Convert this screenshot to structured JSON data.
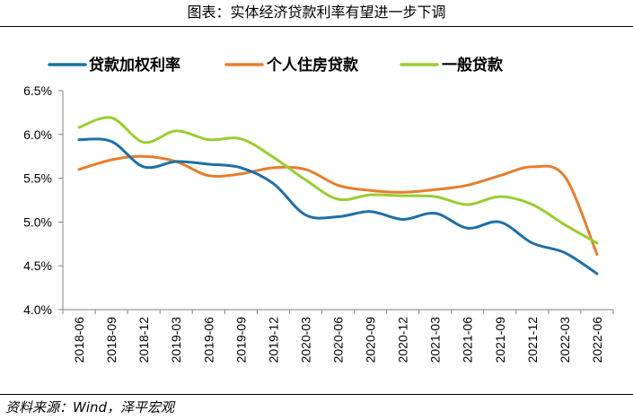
{
  "header": {
    "title": "图表：实体经济贷款利率有望进一步下调"
  },
  "footer": {
    "source": "资料来源：Wind，泽平宏观"
  },
  "chart_data": {
    "type": "line",
    "title": "图表：实体经济贷款利率有望进一步下调",
    "xlabel": "",
    "ylabel": "",
    "ylim": [
      4.0,
      6.5
    ],
    "y_ticks": [
      "4.0%",
      "4.5%",
      "5.0%",
      "5.5%",
      "6.0%",
      "6.5%"
    ],
    "y_tick_values": [
      4.0,
      4.5,
      5.0,
      5.5,
      6.0,
      6.5
    ],
    "grid": false,
    "legend_position": "top",
    "categories": [
      "2018-06",
      "2018-09",
      "2018-12",
      "2019-03",
      "2019-06",
      "2019-09",
      "2019-12",
      "2020-03",
      "2020-06",
      "2020-09",
      "2020-12",
      "2021-03",
      "2021-06",
      "2021-09",
      "2021-12",
      "2022-03",
      "2022-06"
    ],
    "series": [
      {
        "name": "贷款加权利率",
        "color": "#1f6fa8",
        "values": [
          5.94,
          5.92,
          5.63,
          5.69,
          5.66,
          5.62,
          5.44,
          5.08,
          5.06,
          5.12,
          5.03,
          5.1,
          4.93,
          5.0,
          4.76,
          4.65,
          4.41
        ]
      },
      {
        "name": "个人住房贷款",
        "color": "#e67e2e",
        "values": [
          5.6,
          5.71,
          5.75,
          5.69,
          5.53,
          5.55,
          5.62,
          5.6,
          5.42,
          5.36,
          5.34,
          5.37,
          5.42,
          5.53,
          5.63,
          5.52,
          4.63
        ]
      },
      {
        "name": "一般贷款",
        "color": "#9acd32",
        "values": [
          6.08,
          6.19,
          5.91,
          6.04,
          5.94,
          5.95,
          5.74,
          5.48,
          5.26,
          5.31,
          5.3,
          5.29,
          5.2,
          5.29,
          5.2,
          4.97,
          4.76
        ]
      }
    ]
  }
}
